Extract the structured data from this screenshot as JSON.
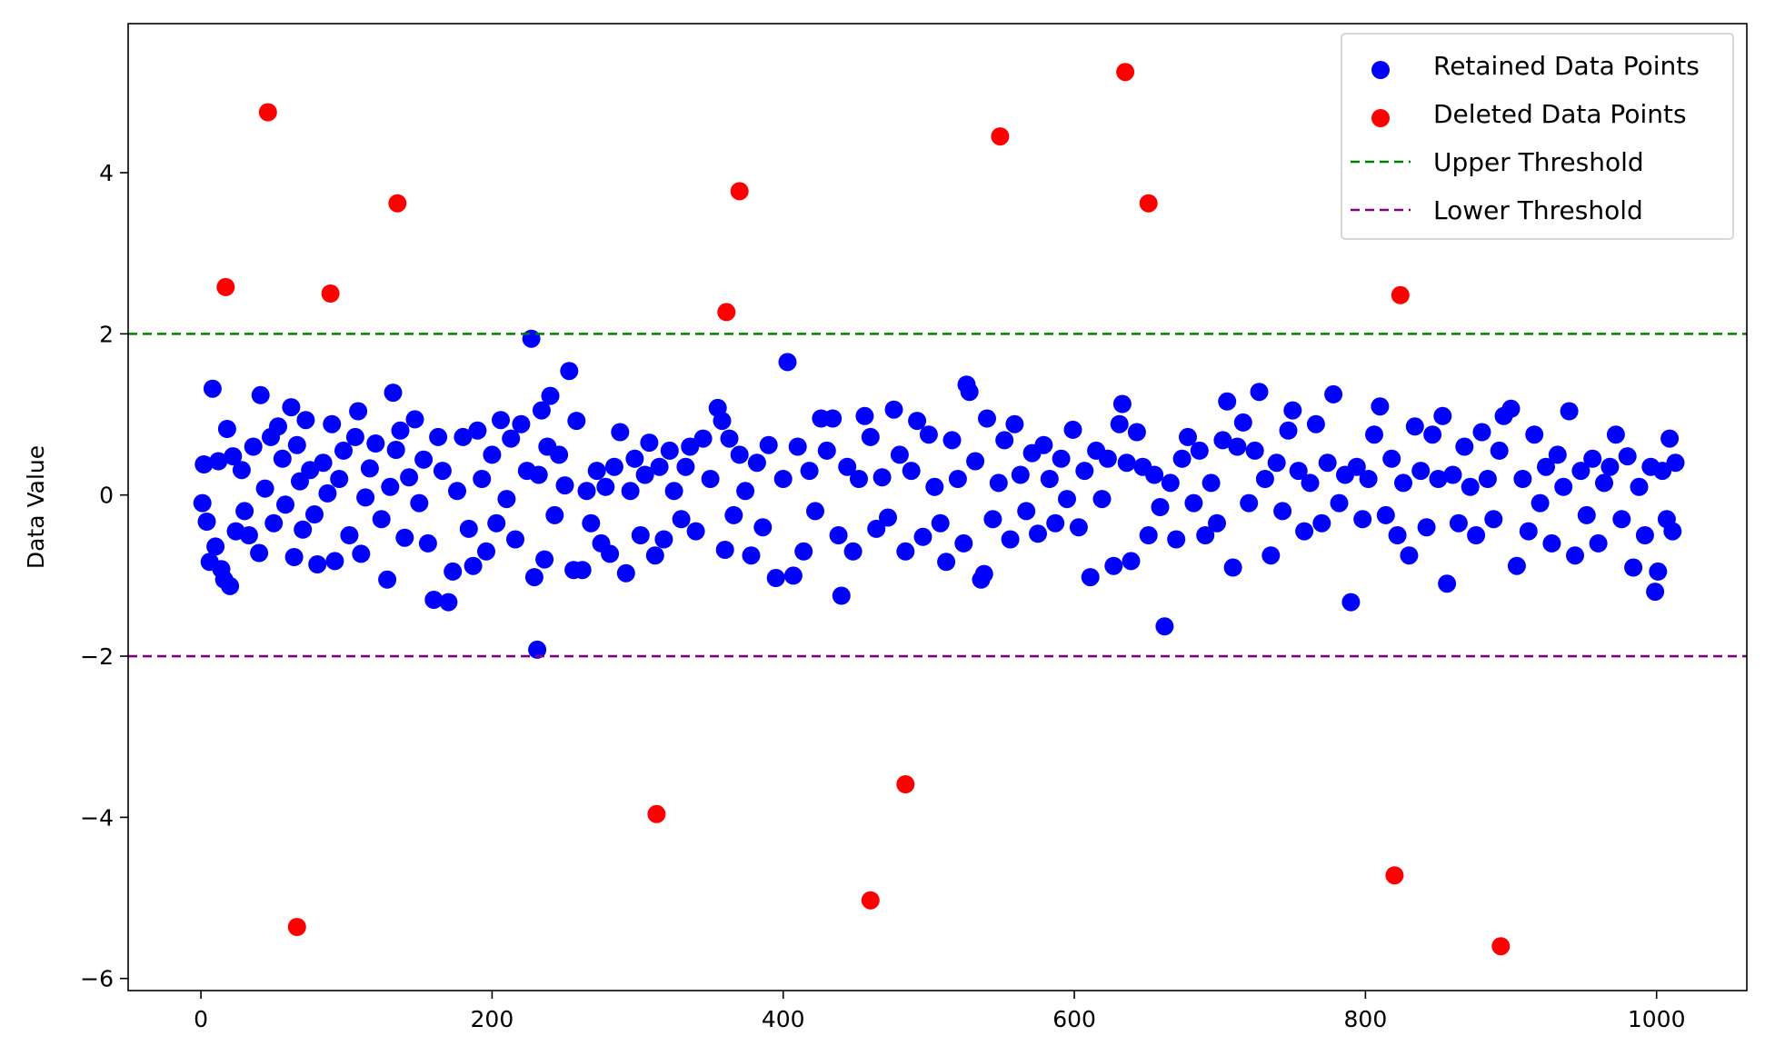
{
  "chart_data": {
    "type": "scatter",
    "xlabel": "",
    "ylabel": "Data Value",
    "xlim": [
      -50,
      1062
    ],
    "ylim": [
      -6.15,
      5.85
    ],
    "x_ticks": [
      0,
      200,
      400,
      600,
      800,
      1000
    ],
    "y_ticks": [
      -6,
      -4,
      -2,
      0,
      2,
      4
    ],
    "x_tick_labels": [
      "0",
      "200",
      "400",
      "600",
      "800",
      "1000"
    ],
    "y_tick_labels": [
      "−6",
      "−4",
      "−2",
      "0",
      "2",
      "4"
    ],
    "grid": false,
    "legend_position": "top-right",
    "upper_threshold": 2.0,
    "lower_threshold": -2.0,
    "legend": [
      {
        "label": "Retained Data Points",
        "kind": "marker",
        "color": "#0000ff"
      },
      {
        "label": "Deleted Data Points",
        "kind": "marker",
        "color": "#ff0000"
      },
      {
        "label": "Upper Threshold",
        "kind": "dashed-line",
        "color": "#008000"
      },
      {
        "label": "Lower Threshold",
        "kind": "dashed-line",
        "color": "#800080"
      }
    ],
    "series": [
      {
        "name": "Retained Data Points",
        "color": "#0000ff",
        "points": [
          [
            1,
            -0.1
          ],
          [
            2,
            0.38
          ],
          [
            4,
            -0.33
          ],
          [
            6,
            -0.83
          ],
          [
            8,
            1.32
          ],
          [
            10,
            -0.64
          ],
          [
            12,
            0.42
          ],
          [
            14,
            -0.92
          ],
          [
            16,
            -1.05
          ],
          [
            18,
            0.82
          ],
          [
            20,
            -1.13
          ],
          [
            22,
            0.48
          ],
          [
            24,
            -0.45
          ],
          [
            28,
            0.31
          ],
          [
            30,
            -0.2
          ],
          [
            33,
            -0.5
          ],
          [
            36,
            0.6
          ],
          [
            40,
            -0.72
          ],
          [
            41,
            1.24
          ],
          [
            44,
            0.08
          ],
          [
            48,
            0.72
          ],
          [
            50,
            -0.35
          ],
          [
            53,
            0.85
          ],
          [
            56,
            0.45
          ],
          [
            58,
            -0.12
          ],
          [
            62,
            1.09
          ],
          [
            64,
            -0.77
          ],
          [
            66,
            0.62
          ],
          [
            68,
            0.17
          ],
          [
            70,
            -0.43
          ],
          [
            72,
            0.93
          ],
          [
            75,
            0.31
          ],
          [
            78,
            -0.24
          ],
          [
            80,
            -0.86
          ],
          [
            84,
            0.4
          ],
          [
            87,
            0.02
          ],
          [
            90,
            0.88
          ],
          [
            92,
            -0.82
          ],
          [
            95,
            0.2
          ],
          [
            98,
            0.55
          ],
          [
            102,
            -0.5
          ],
          [
            106,
            0.72
          ],
          [
            108,
            1.04
          ],
          [
            110,
            -0.73
          ],
          [
            113,
            -0.03
          ],
          [
            116,
            0.33
          ],
          [
            120,
            0.64
          ],
          [
            124,
            -0.3
          ],
          [
            128,
            -1.05
          ],
          [
            130,
            0.1
          ],
          [
            132,
            1.27
          ],
          [
            134,
            0.56
          ],
          [
            137,
            0.8
          ],
          [
            140,
            -0.53
          ],
          [
            143,
            0.22
          ],
          [
            147,
            0.94
          ],
          [
            150,
            -0.1
          ],
          [
            153,
            0.44
          ],
          [
            156,
            -0.6
          ],
          [
            160,
            -1.3
          ],
          [
            163,
            0.72
          ],
          [
            166,
            0.3
          ],
          [
            170,
            -1.33
          ],
          [
            173,
            -0.95
          ],
          [
            176,
            0.05
          ],
          [
            180,
            0.72
          ],
          [
            184,
            -0.42
          ],
          [
            187,
            -0.88
          ],
          [
            190,
            0.8
          ],
          [
            193,
            0.2
          ],
          [
            196,
            -0.7
          ],
          [
            200,
            0.5
          ],
          [
            203,
            -0.35
          ],
          [
            206,
            0.93
          ],
          [
            210,
            -0.05
          ],
          [
            213,
            0.7
          ],
          [
            216,
            -0.55
          ],
          [
            220,
            0.88
          ],
          [
            224,
            0.3
          ],
          [
            227,
            1.94
          ],
          [
            229,
            -1.02
          ],
          [
            231,
            -1.92
          ],
          [
            232,
            0.25
          ],
          [
            234,
            1.05
          ],
          [
            236,
            -0.8
          ],
          [
            238,
            0.6
          ],
          [
            240,
            1.23
          ],
          [
            243,
            -0.25
          ],
          [
            246,
            0.5
          ],
          [
            250,
            0.12
          ],
          [
            253,
            1.54
          ],
          [
            256,
            -0.93
          ],
          [
            258,
            0.92
          ],
          [
            262,
            -0.93
          ],
          [
            265,
            0.05
          ],
          [
            268,
            -0.35
          ],
          [
            272,
            0.3
          ],
          [
            275,
            -0.6
          ],
          [
            278,
            0.1
          ],
          [
            281,
            -0.73
          ],
          [
            284,
            0.35
          ],
          [
            288,
            0.78
          ],
          [
            292,
            -0.97
          ],
          [
            295,
            0.05
          ],
          [
            298,
            0.45
          ],
          [
            302,
            -0.5
          ],
          [
            305,
            0.25
          ],
          [
            308,
            0.65
          ],
          [
            312,
            -0.75
          ],
          [
            315,
            0.35
          ],
          [
            318,
            -0.55
          ],
          [
            322,
            0.55
          ],
          [
            325,
            0.05
          ],
          [
            330,
            -0.3
          ],
          [
            333,
            0.35
          ],
          [
            336,
            0.6
          ],
          [
            340,
            -0.45
          ],
          [
            345,
            0.7
          ],
          [
            350,
            0.2
          ],
          [
            355,
            1.08
          ],
          [
            358,
            0.92
          ],
          [
            360,
            -0.68
          ],
          [
            363,
            0.7
          ],
          [
            366,
            -0.25
          ],
          [
            370,
            0.5
          ],
          [
            374,
            0.05
          ],
          [
            378,
            -0.75
          ],
          [
            382,
            0.4
          ],
          [
            386,
            -0.4
          ],
          [
            390,
            0.62
          ],
          [
            395,
            -1.03
          ],
          [
            400,
            0.2
          ],
          [
            403,
            1.65
          ],
          [
            407,
            -1.0
          ],
          [
            410,
            0.6
          ],
          [
            414,
            -0.7
          ],
          [
            418,
            0.3
          ],
          [
            422,
            -0.2
          ],
          [
            426,
            0.95
          ],
          [
            430,
            0.55
          ],
          [
            434,
            0.95
          ],
          [
            438,
            -0.5
          ],
          [
            440,
            -1.25
          ],
          [
            444,
            0.35
          ],
          [
            448,
            -0.7
          ],
          [
            452,
            0.2
          ],
          [
            456,
            0.98
          ],
          [
            460,
            0.72
          ],
          [
            464,
            -0.42
          ],
          [
            468,
            0.22
          ],
          [
            472,
            -0.28
          ],
          [
            476,
            1.06
          ],
          [
            480,
            0.5
          ],
          [
            484,
            -0.7
          ],
          [
            488,
            0.3
          ],
          [
            492,
            0.92
          ],
          [
            496,
            -0.52
          ],
          [
            500,
            0.75
          ],
          [
            504,
            0.1
          ],
          [
            508,
            -0.35
          ],
          [
            512,
            -0.83
          ],
          [
            516,
            0.68
          ],
          [
            520,
            0.2
          ],
          [
            524,
            -0.6
          ],
          [
            526,
            1.37
          ],
          [
            528,
            1.28
          ],
          [
            532,
            0.42
          ],
          [
            536,
            -1.05
          ],
          [
            538,
            -0.98
          ],
          [
            540,
            0.95
          ],
          [
            544,
            -0.3
          ],
          [
            548,
            0.15
          ],
          [
            552,
            0.68
          ],
          [
            556,
            -0.55
          ],
          [
            559,
            0.88
          ],
          [
            563,
            0.25
          ],
          [
            567,
            -0.2
          ],
          [
            571,
            0.52
          ],
          [
            575,
            -0.48
          ],
          [
            579,
            0.62
          ],
          [
            583,
            0.2
          ],
          [
            587,
            -0.35
          ],
          [
            591,
            0.45
          ],
          [
            595,
            -0.05
          ],
          [
            599,
            0.81
          ],
          [
            603,
            -0.4
          ],
          [
            607,
            0.3
          ],
          [
            611,
            -1.02
          ],
          [
            615,
            0.55
          ],
          [
            619,
            -0.05
          ],
          [
            623,
            0.45
          ],
          [
            627,
            -0.88
          ],
          [
            631,
            0.88
          ],
          [
            633,
            1.13
          ],
          [
            636,
            0.4
          ],
          [
            639,
            -0.82
          ],
          [
            643,
            0.78
          ],
          [
            647,
            0.35
          ],
          [
            651,
            -0.5
          ],
          [
            655,
            0.25
          ],
          [
            659,
            -0.15
          ],
          [
            662,
            -1.63
          ],
          [
            666,
            0.15
          ],
          [
            670,
            -0.55
          ],
          [
            674,
            0.45
          ],
          [
            678,
            0.72
          ],
          [
            682,
            -0.1
          ],
          [
            686,
            0.55
          ],
          [
            690,
            -0.5
          ],
          [
            694,
            0.15
          ],
          [
            698,
            -0.35
          ],
          [
            702,
            0.68
          ],
          [
            705,
            1.16
          ],
          [
            709,
            -0.9
          ],
          [
            712,
            0.6
          ],
          [
            716,
            0.9
          ],
          [
            720,
            -0.1
          ],
          [
            724,
            0.55
          ],
          [
            727,
            1.28
          ],
          [
            731,
            0.2
          ],
          [
            735,
            -0.75
          ],
          [
            739,
            0.4
          ],
          [
            743,
            -0.2
          ],
          [
            747,
            0.8
          ],
          [
            750,
            1.05
          ],
          [
            754,
            0.3
          ],
          [
            758,
            -0.45
          ],
          [
            762,
            0.15
          ],
          [
            766,
            0.88
          ],
          [
            770,
            -0.35
          ],
          [
            774,
            0.4
          ],
          [
            778,
            1.25
          ],
          [
            782,
            -0.1
          ],
          [
            786,
            0.25
          ],
          [
            790,
            -1.33
          ],
          [
            794,
            0.35
          ],
          [
            798,
            -0.3
          ],
          [
            802,
            0.2
          ],
          [
            806,
            0.75
          ],
          [
            810,
            1.1
          ],
          [
            814,
            -0.25
          ],
          [
            818,
            0.45
          ],
          [
            822,
            -0.5
          ],
          [
            826,
            0.15
          ],
          [
            830,
            -0.75
          ],
          [
            834,
            0.85
          ],
          [
            838,
            0.3
          ],
          [
            842,
            -0.4
          ],
          [
            846,
            0.75
          ],
          [
            850,
            0.2
          ],
          [
            853,
            0.98
          ],
          [
            856,
            -1.1
          ],
          [
            860,
            0.25
          ],
          [
            864,
            -0.35
          ],
          [
            868,
            0.6
          ],
          [
            872,
            0.1
          ],
          [
            876,
            -0.5
          ],
          [
            880,
            0.78
          ],
          [
            884,
            0.2
          ],
          [
            888,
            -0.3
          ],
          [
            892,
            0.55
          ],
          [
            895,
            0.98
          ],
          [
            900,
            1.07
          ],
          [
            904,
            -0.88
          ],
          [
            908,
            0.2
          ],
          [
            912,
            -0.45
          ],
          [
            916,
            0.75
          ],
          [
            920,
            -0.1
          ],
          [
            924,
            0.35
          ],
          [
            928,
            -0.6
          ],
          [
            932,
            0.5
          ],
          [
            936,
            0.1
          ],
          [
            940,
            1.04
          ],
          [
            944,
            -0.75
          ],
          [
            948,
            0.3
          ],
          [
            952,
            -0.25
          ],
          [
            956,
            0.45
          ],
          [
            960,
            -0.6
          ],
          [
            964,
            0.15
          ],
          [
            968,
            0.35
          ],
          [
            972,
            0.75
          ],
          [
            976,
            -0.3
          ],
          [
            980,
            0.48
          ],
          [
            984,
            -0.9
          ],
          [
            988,
            0.1
          ],
          [
            992,
            -0.5
          ],
          [
            996,
            0.35
          ],
          [
            999,
            -1.2
          ],
          [
            1001,
            -0.95
          ],
          [
            1004,
            0.3
          ],
          [
            1007,
            -0.3
          ],
          [
            1009,
            0.7
          ],
          [
            1011,
            -0.45
          ],
          [
            1013,
            0.4
          ]
        ]
      },
      {
        "name": "Deleted Data Points",
        "color": "#ff0000",
        "points": [
          [
            17,
            2.58
          ],
          [
            46,
            4.75
          ],
          [
            66,
            -5.36
          ],
          [
            89,
            2.5
          ],
          [
            135,
            3.62
          ],
          [
            313,
            -3.96
          ],
          [
            361,
            2.27
          ],
          [
            370,
            3.77
          ],
          [
            460,
            -5.03
          ],
          [
            484,
            -3.59
          ],
          [
            549,
            4.45
          ],
          [
            635,
            5.25
          ],
          [
            651,
            3.62
          ],
          [
            820,
            -4.72
          ],
          [
            824,
            2.48
          ],
          [
            893,
            -5.6
          ]
        ]
      }
    ]
  }
}
